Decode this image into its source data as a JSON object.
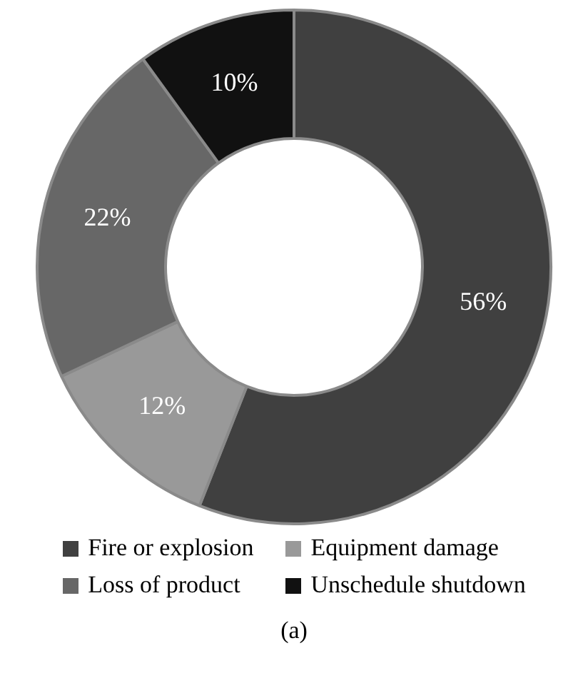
{
  "chart_data": {
    "type": "donut",
    "categories": [
      "Fire or explosion",
      "Equipment damage",
      "Loss of product",
      "Unschedule shutdown"
    ],
    "values": [
      56,
      12,
      22,
      10
    ],
    "colors": [
      "#404040",
      "#999999",
      "#676767",
      "#111111"
    ],
    "value_labels": [
      "56%",
      "12%",
      "22%",
      "10%"
    ],
    "legend": "bottom",
    "annotations": [
      "(a)"
    ]
  }
}
